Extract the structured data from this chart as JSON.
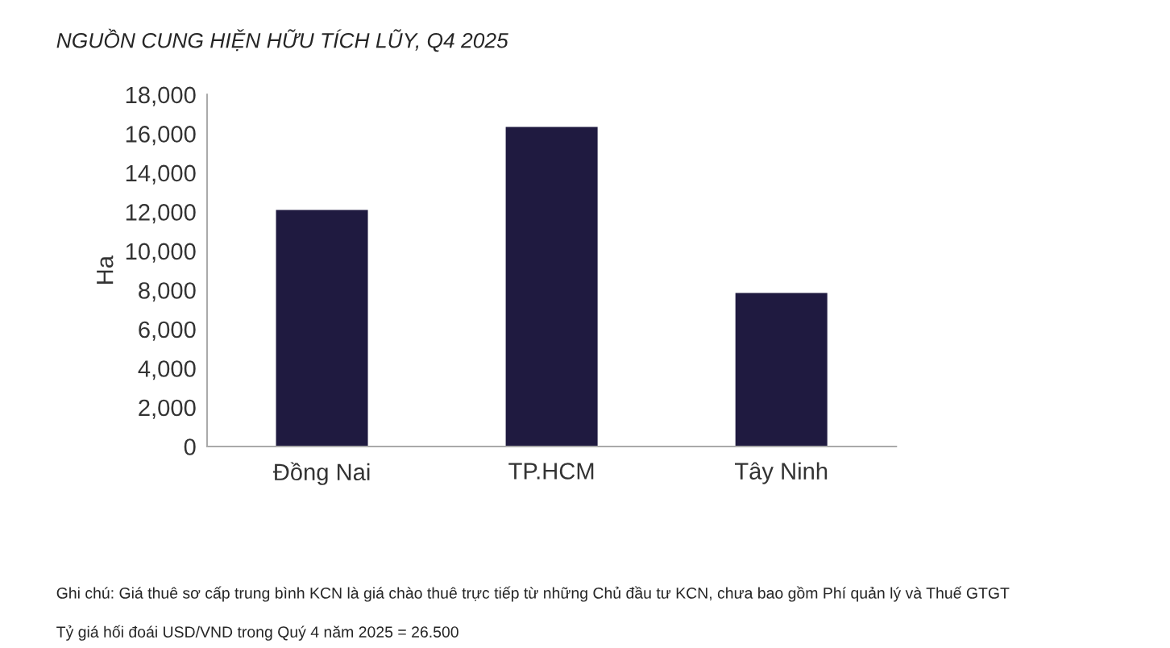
{
  "chart_data": {
    "type": "bar",
    "title": "NGUỒN CUNG HIỆN HỮU TÍCH LŨY, Q4 2025",
    "ylabel": "Ha",
    "categories": [
      "Đồng Nai",
      "TP.HCM",
      "Tây Ninh"
    ],
    "values": [
      12100,
      16350,
      7850
    ],
    "color": "#1f1a40",
    "ylim": [
      0,
      18000
    ],
    "yticks": [
      0,
      {
        "value": 2000,
        "label": "2,000"
      },
      {
        "value": 4000,
        "label": "4,000"
      },
      {
        "value": 6000,
        "label": "6,000"
      },
      {
        "value": 8000,
        "label": "8,000"
      },
      {
        "value": 10000,
        "label": "10,000"
      },
      {
        "value": 12000,
        "label": "12,000"
      },
      {
        "value": 14000,
        "label": "14,000"
      },
      {
        "value": 16000,
        "label": "16,000"
      },
      {
        "value": 18000,
        "label": "18,000"
      }
    ],
    "grid": false,
    "annotations": [
      "Ghi chú: Giá thuê sơ cấp trung bình KCN là giá chào thuê trực tiếp từ những Chủ đầu tư KCN, chưa bao gồm Phí quản lý và Thuế GTGT",
      "Tỷ giá hối đoái USD/VND trong Quý 4 năm 2025 = 26.500"
    ]
  }
}
